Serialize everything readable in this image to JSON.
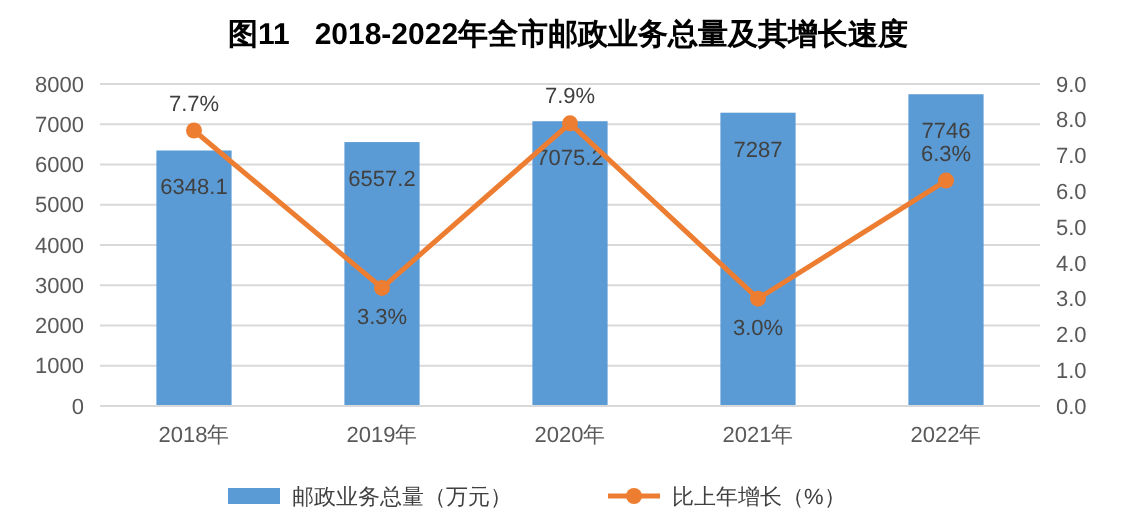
{
  "chart_data": {
    "type": "bar",
    "title": "图11   2018-2022年全市邮政业务总量及其增长速度",
    "categories": [
      "2018年",
      "2019年",
      "2020年",
      "2021年",
      "2022年"
    ],
    "series": [
      {
        "name": "邮政业务总量（万元）",
        "color": "#5b9bd5",
        "values": [
          6348.1,
          6557.2,
          7075.2,
          7287,
          7746
        ],
        "value_labels": [
          "6348.1",
          "6557.2",
          "7075.2",
          "7287",
          "7746"
        ]
      },
      {
        "name": "比上年增长（%）",
        "type": "line",
        "axis": "y2",
        "color": "#ed7d31",
        "marker": "circle",
        "values": [
          7.7,
          3.3,
          7.9,
          3.0,
          6.3
        ],
        "value_labels": [
          "7.7%",
          "3.3%",
          "7.9%",
          "3.0%",
          "6.3%"
        ]
      }
    ],
    "ylim": [
      0,
      8000
    ],
    "yticks": [
      0,
      1000,
      2000,
      3000,
      4000,
      5000,
      6000,
      7000,
      8000
    ],
    "y2lim": [
      0,
      9
    ],
    "y2ticks": [
      {
        "value": 0,
        "label": "0.0"
      },
      {
        "value": 1,
        "label": "1.0"
      },
      {
        "value": 2,
        "label": "2.0"
      },
      {
        "value": 3,
        "label": "3.0"
      },
      {
        "value": 4,
        "label": "4.0"
      },
      {
        "value": 5,
        "label": "5.0"
      },
      {
        "value": 6,
        "label": "6.0"
      },
      {
        "value": 7,
        "label": "7.0"
      },
      {
        "value": 8,
        "label": "8.0"
      },
      {
        "value": 9,
        "label": "9.0"
      }
    ],
    "grid": "y",
    "legend": "bottom"
  }
}
